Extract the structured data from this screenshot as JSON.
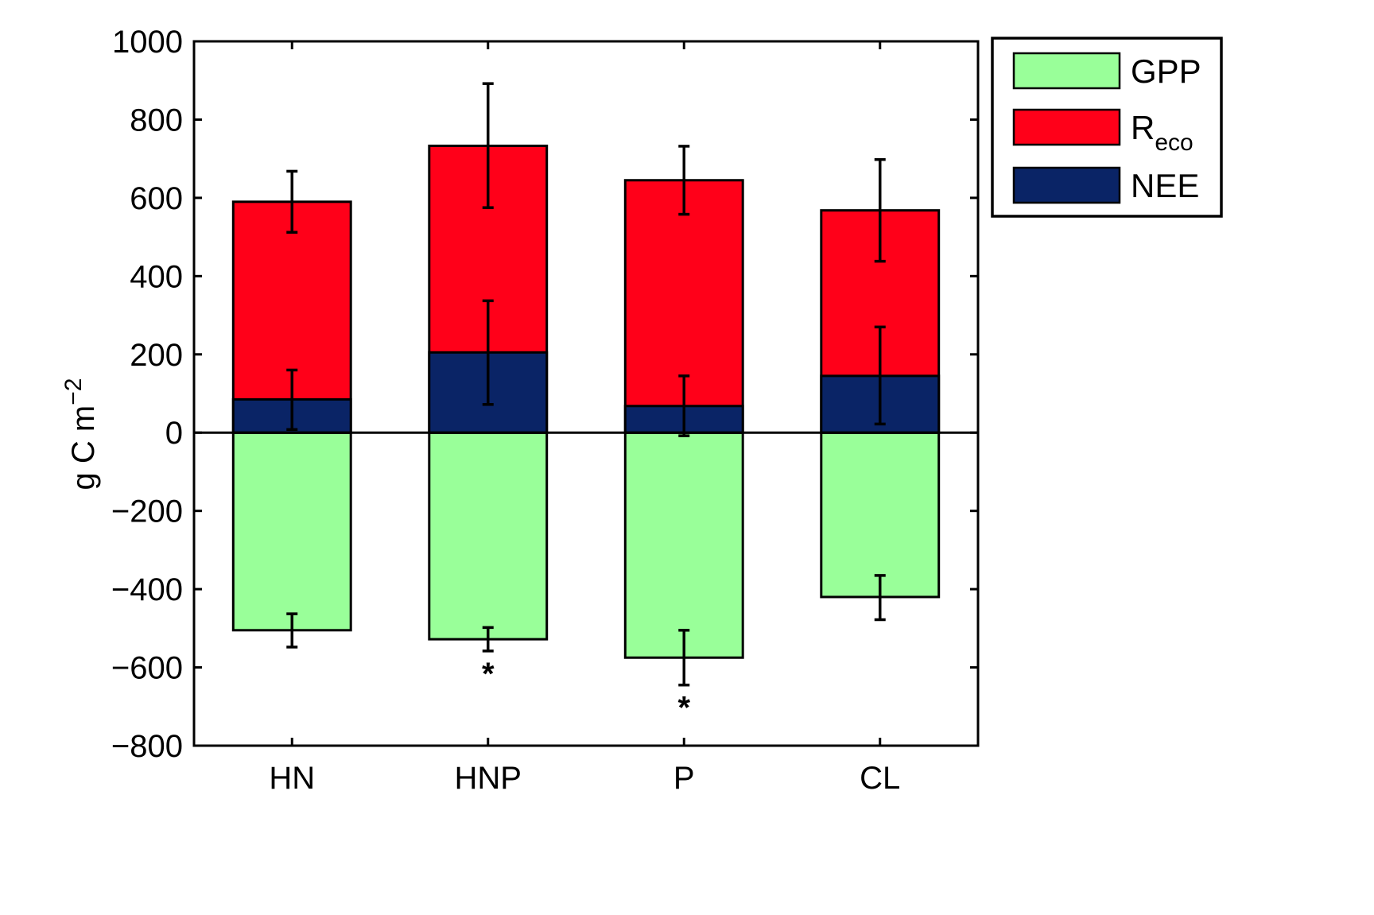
{
  "chart_data": {
    "type": "bar",
    "stacked": true,
    "categories": [
      "HN",
      "HNP",
      "P",
      "CL"
    ],
    "series": [
      {
        "name": "GPP",
        "color": "#99ff99",
        "values": [
          -505,
          -528,
          -575,
          -420
        ],
        "error_low": [
          -548,
          -558,
          -645,
          -478
        ],
        "error_high": [
          -463,
          -498,
          -505,
          -365
        ]
      },
      {
        "name": "R",
        "name_subscript": "eco",
        "color": "#ff0019",
        "values": [
          590,
          733,
          645,
          568
        ],
        "error_low": [
          512,
          575,
          558,
          438
        ],
        "error_high": [
          668,
          892,
          732,
          698
        ]
      },
      {
        "name": "NEE",
        "color": "#0a2466",
        "values": [
          85,
          205,
          68,
          145
        ],
        "error_low": [
          8,
          72,
          -8,
          22
        ],
        "error_high": [
          160,
          337,
          145,
          270
        ]
      }
    ],
    "significance": [
      "",
      "*",
      "*",
      ""
    ],
    "ylabel": {
      "base": "g C m",
      "superscript": "−2"
    },
    "ylim": [
      -800,
      1000
    ],
    "yticks": [
      1000,
      800,
      600,
      400,
      200,
      0,
      -200,
      -400,
      -600,
      -800
    ],
    "ytick_labels": [
      "1000",
      "800",
      "600",
      "400",
      "200",
      "0",
      "−200",
      "−400",
      "−600",
      "−800"
    ],
    "grid": false,
    "legend_position": "outside-top-right"
  }
}
